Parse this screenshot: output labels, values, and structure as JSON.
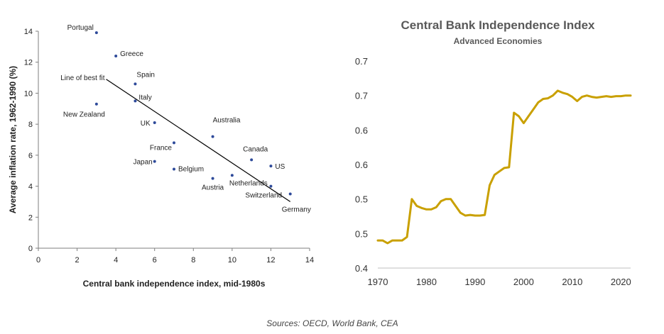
{
  "colors": {
    "scatter_point": "#2E4A9A",
    "fit_line": "#000000",
    "axis_line": "#7f7f7f",
    "right_line": "#C9A000",
    "text_dark": "#222222",
    "title_gray": "#595959"
  },
  "source_note": "Sources: OECD, World Bank, CEA",
  "chart_data": [
    {
      "type": "scatter",
      "title": "",
      "xlabel": "Central bank independence index, mid-1980s",
      "ylabel": "Average inflation rate, 1962-1990 (%)",
      "xlim": [
        0,
        14
      ],
      "ylim": [
        0,
        14
      ],
      "xticks": [
        0,
        2,
        4,
        6,
        8,
        10,
        12,
        14
      ],
      "yticks": [
        0,
        2,
        4,
        6,
        8,
        10,
        12,
        14
      ],
      "points": [
        {
          "label": "Portugal",
          "x": 3,
          "y": 13.9
        },
        {
          "label": "Greece",
          "x": 4,
          "y": 12.4
        },
        {
          "label": "Spain",
          "x": 5,
          "y": 10.6
        },
        {
          "label": "Italy",
          "x": 5,
          "y": 9.5
        },
        {
          "label": "New Zealand",
          "x": 3,
          "y": 9.3
        },
        {
          "label": "UK",
          "x": 6,
          "y": 8.1
        },
        {
          "label": "Australia",
          "x": 9,
          "y": 7.2
        },
        {
          "label": "France",
          "x": 7,
          "y": 6.8
        },
        {
          "label": "Canada",
          "x": 11,
          "y": 5.7
        },
        {
          "label": "Japan",
          "x": 6,
          "y": 5.6
        },
        {
          "label": "US",
          "x": 12,
          "y": 5.3
        },
        {
          "label": "Belgium",
          "x": 7,
          "y": 5.1
        },
        {
          "label": "Netherlands",
          "x": 10,
          "y": 4.7
        },
        {
          "label": "Austria",
          "x": 9,
          "y": 4.5
        },
        {
          "label": "Switzerland",
          "x": 12,
          "y": 4.0
        },
        {
          "label": "Germany",
          "x": 13,
          "y": 3.5
        }
      ],
      "fit_line": {
        "label": "Line of best fit",
        "x": [
          3.5,
          13
        ],
        "y": [
          10.9,
          3.0
        ]
      }
    },
    {
      "type": "line",
      "title": "Central Bank Independence Index",
      "subtitle": "Advanced Economies",
      "xlabel": "",
      "ylabel": "",
      "xlim": [
        1970,
        2022
      ],
      "ylim": [
        0.4,
        0.7
      ],
      "xticks": [
        1970,
        1980,
        1990,
        2000,
        2010,
        2020
      ],
      "yticks": [
        0.4,
        0.45,
        0.5,
        0.55,
        0.6,
        0.65,
        0.7
      ],
      "ytick_labels": [
        "0.4",
        "0.5",
        "0.5",
        "0.6",
        "0.6",
        "0.7",
        "0.7"
      ],
      "series": [
        {
          "name": "Central Bank Independence Index",
          "x": [
            1970,
            1971,
            1972,
            1973,
            1974,
            1975,
            1976,
            1977,
            1978,
            1979,
            1980,
            1981,
            1982,
            1983,
            1984,
            1985,
            1986,
            1987,
            1988,
            1989,
            1990,
            1991,
            1992,
            1993,
            1994,
            1995,
            1996,
            1997,
            1998,
            1999,
            2000,
            2001,
            2002,
            2003,
            2004,
            2005,
            2006,
            2007,
            2008,
            2009,
            2010,
            2011,
            2012,
            2013,
            2014,
            2015,
            2016,
            2017,
            2018,
            2019,
            2020,
            2021,
            2022
          ],
          "values": [
            0.44,
            0.44,
            0.436,
            0.44,
            0.44,
            0.44,
            0.445,
            0.5,
            0.49,
            0.487,
            0.485,
            0.485,
            0.488,
            0.497,
            0.5,
            0.5,
            0.49,
            0.48,
            0.476,
            0.477,
            0.476,
            0.476,
            0.477,
            0.52,
            0.535,
            0.54,
            0.545,
            0.546,
            0.625,
            0.62,
            0.61,
            0.62,
            0.63,
            0.64,
            0.645,
            0.646,
            0.65,
            0.657,
            0.654,
            0.652,
            0.648,
            0.642,
            0.648,
            0.65,
            0.648,
            0.647,
            0.648,
            0.649,
            0.648,
            0.649,
            0.649,
            0.65,
            0.65
          ]
        }
      ]
    }
  ]
}
